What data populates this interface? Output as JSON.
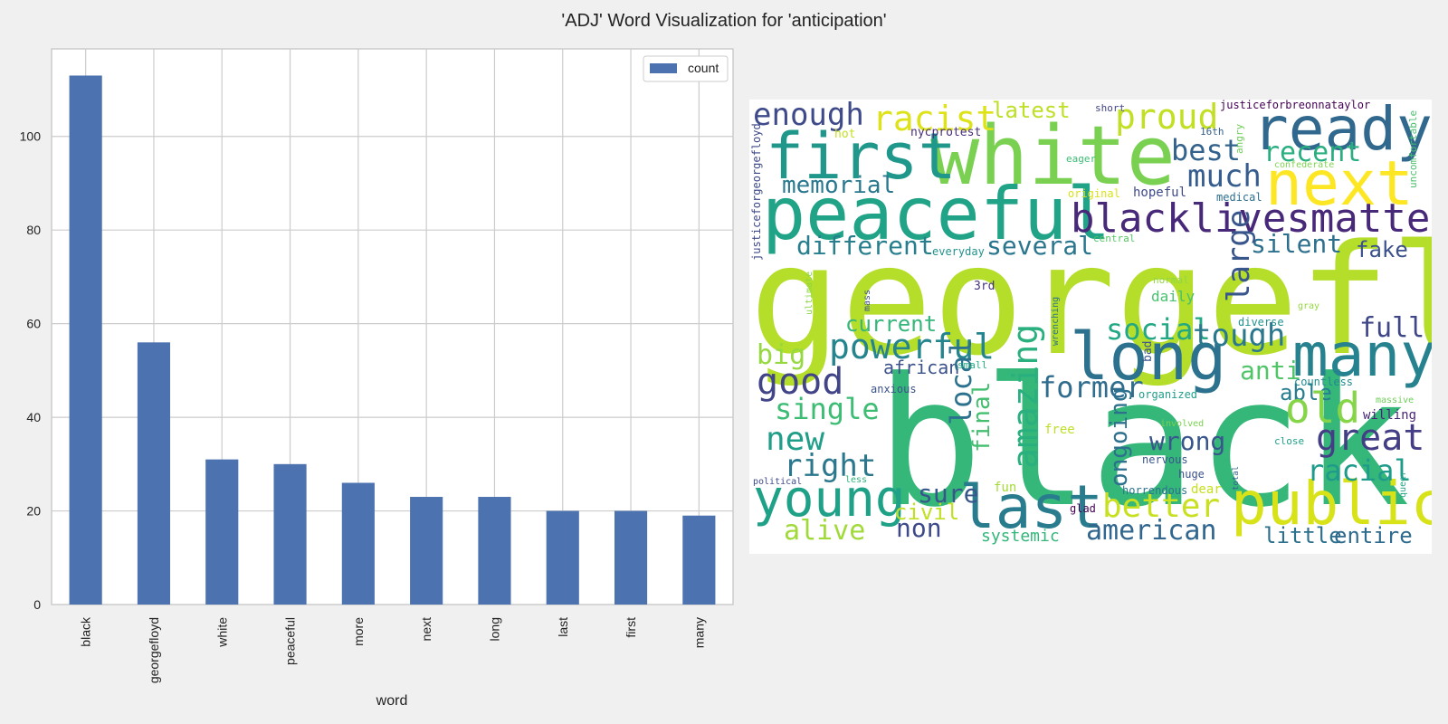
{
  "title": "'ADJ' Word Visualization for 'anticipation'",
  "chart_data": [
    {
      "type": "bar",
      "categories": [
        "black",
        "georgefloyd",
        "white",
        "peaceful",
        "more",
        "next",
        "long",
        "last",
        "first",
        "many"
      ],
      "series": [
        {
          "name": "count",
          "values": [
            113,
            56,
            31,
            30,
            26,
            23,
            23,
            20,
            20,
            19
          ]
        }
      ],
      "xlabel": "word",
      "ylabel": "",
      "ylim": [
        0,
        118.7
      ],
      "yticks": [
        0,
        20,
        40,
        60,
        80,
        100
      ],
      "grid": true,
      "legend": "top-right",
      "bar_color": "#4c72b0"
    },
    {
      "type": "wordcloud",
      "words": [
        {
          "text": "georgefloyd",
          "color": "#b5de2b"
        },
        {
          "text": "black",
          "color": "#35b779"
        },
        {
          "text": "white",
          "color": "#7ad151"
        },
        {
          "text": "peaceful",
          "color": "#20a386"
        },
        {
          "text": "first",
          "color": "#1f988b"
        },
        {
          "text": "next",
          "color": "#fde725"
        },
        {
          "text": "ready",
          "color": "#31688e"
        },
        {
          "text": "many",
          "color": "#26828e"
        },
        {
          "text": "long",
          "color": "#2c728e"
        },
        {
          "text": "last",
          "color": "#287c8e"
        },
        {
          "text": "public",
          "color": "#d8e219"
        },
        {
          "text": "young",
          "color": "#1fa188"
        },
        {
          "text": "blacklivesmatter",
          "color": "#482878"
        },
        {
          "text": "racist",
          "color": "#dde318"
        },
        {
          "text": "enough",
          "color": "#3e4a89"
        },
        {
          "text": "proud",
          "color": "#c2df23"
        },
        {
          "text": "latest",
          "color": "#bddf26"
        },
        {
          "text": "best",
          "color": "#33638d"
        },
        {
          "text": "recent",
          "color": "#29af7f"
        },
        {
          "text": "much",
          "color": "#365d8d"
        },
        {
          "text": "memorial",
          "color": "#2a788e"
        },
        {
          "text": "different",
          "color": "#277f8e"
        },
        {
          "text": "several",
          "color": "#2a768e"
        },
        {
          "text": "silent",
          "color": "#2d708e"
        },
        {
          "text": "fake",
          "color": "#3b518b"
        },
        {
          "text": "large",
          "color": "#39568c"
        },
        {
          "text": "powerful",
          "color": "#25858e"
        },
        {
          "text": "current",
          "color": "#35b779"
        },
        {
          "text": "social",
          "color": "#22a884"
        },
        {
          "text": "tough",
          "color": "#2a788e"
        },
        {
          "text": "full",
          "color": "#3f4788"
        },
        {
          "text": "big",
          "color": "#95d840"
        },
        {
          "text": "good",
          "color": "#414487"
        },
        {
          "text": "african",
          "color": "#3b528b"
        },
        {
          "text": "amazing",
          "color": "#2ab07f"
        },
        {
          "text": "anti",
          "color": "#52c569"
        },
        {
          "text": "able",
          "color": "#287d8e"
        },
        {
          "text": "single",
          "color": "#3dbc74"
        },
        {
          "text": "local",
          "color": "#2c728e"
        },
        {
          "text": "final",
          "color": "#44bf70"
        },
        {
          "text": "former",
          "color": "#2f6c8e"
        },
        {
          "text": "old",
          "color": "#86d549"
        },
        {
          "text": "great",
          "color": "#433e85"
        },
        {
          "text": "new",
          "color": "#1f9e89"
        },
        {
          "text": "right",
          "color": "#2a778e"
        },
        {
          "text": "wrong",
          "color": "#39568c"
        },
        {
          "text": "ongoing",
          "color": "#2d718e"
        },
        {
          "text": "racial",
          "color": "#1e9b8a"
        },
        {
          "text": "sure",
          "color": "#39568c"
        },
        {
          "text": "better",
          "color": "#c8e020"
        },
        {
          "text": "civil",
          "color": "#c0df25"
        },
        {
          "text": "non",
          "color": "#3e4989"
        },
        {
          "text": "american",
          "color": "#31668e"
        },
        {
          "text": "alive",
          "color": "#a0da39"
        },
        {
          "text": "little",
          "color": "#2d708e"
        },
        {
          "text": "entire",
          "color": "#2f6b8e"
        },
        {
          "text": "systemic",
          "color": "#32b67a"
        },
        {
          "text": "justiceforbreonnataylor",
          "color": "#440154"
        },
        {
          "text": "justiceforgeorgefloyd",
          "color": "#3e4989"
        },
        {
          "text": "uncomfortable",
          "color": "#4ac16d"
        },
        {
          "text": "short",
          "color": "#414487"
        },
        {
          "text": "16th",
          "color": "#35608d"
        },
        {
          "text": "angry",
          "color": "#6ece58"
        },
        {
          "text": "nycprotest",
          "color": "#472d7b"
        },
        {
          "text": "hot",
          "color": "#c2df23"
        },
        {
          "text": "eager",
          "color": "#3dbc74"
        },
        {
          "text": "confederate",
          "color": "#7fd34e"
        },
        {
          "text": "original",
          "color": "#d8e219"
        },
        {
          "text": "hopeful",
          "color": "#3e4a89"
        },
        {
          "text": "medical",
          "color": "#2e6e8e"
        },
        {
          "text": "everyday",
          "color": "#21918c"
        },
        {
          "text": "central",
          "color": "#56c667"
        },
        {
          "text": "3rd",
          "color": "#46337f"
        },
        {
          "text": "normal",
          "color": "#90d743"
        },
        {
          "text": "ultimate",
          "color": "#8bd646"
        },
        {
          "text": "mass",
          "color": "#3b528b"
        },
        {
          "text": "daily",
          "color": "#48c16e"
        },
        {
          "text": "gray",
          "color": "#95d840"
        },
        {
          "text": "diverse",
          "color": "#21918c"
        },
        {
          "text": "wrenching",
          "color": "#2c728e"
        },
        {
          "text": "small",
          "color": "#27ad81"
        },
        {
          "text": "anxious",
          "color": "#3b528b"
        },
        {
          "text": "bad",
          "color": "#3a548c"
        },
        {
          "text": "countless",
          "color": "#23898e"
        },
        {
          "text": "organized",
          "color": "#1f9e89"
        },
        {
          "text": "massive",
          "color": "#6ece58"
        },
        {
          "text": "willing",
          "color": "#482576"
        },
        {
          "text": "involved",
          "color": "#7ad151"
        },
        {
          "text": "close",
          "color": "#1fa188"
        },
        {
          "text": "free",
          "color": "#bddf26"
        },
        {
          "text": "nervous",
          "color": "#39568c"
        },
        {
          "text": "huge",
          "color": "#3b518b"
        },
        {
          "text": "political",
          "color": "#3e4a89"
        },
        {
          "text": "less",
          "color": "#2db27d"
        },
        {
          "text": "fun",
          "color": "#a5db36"
        },
        {
          "text": "horrendous",
          "color": "#2c738e"
        },
        {
          "text": "dear",
          "color": "#c8e020"
        },
        {
          "text": "glad",
          "color": "#440154"
        },
        {
          "text": "total",
          "color": "#33638d"
        },
        {
          "text": "queer",
          "color": "#20a386"
        }
      ]
    }
  ]
}
